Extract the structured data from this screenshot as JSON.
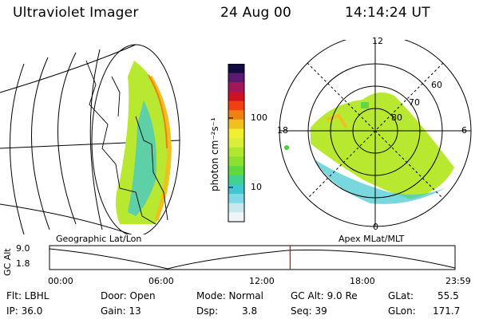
{
  "header": {
    "title": "Ultraviolet Imager",
    "date": "24 Aug 00",
    "time": "14:14:24 UT"
  },
  "colorbar": {
    "unit_label": "photon cm⁻²s⁻¹",
    "ticks": [
      "100",
      "10"
    ],
    "colors": [
      "#120a40",
      "#5a1a70",
      "#a0185a",
      "#d01020",
      "#f04010",
      "#f08010",
      "#f0c020",
      "#f0f030",
      "#d8f038",
      "#b0e830",
      "#8ce030",
      "#60d840",
      "#40d090",
      "#40c8d0",
      "#80d8e8",
      "#c8e8f0",
      "#eef4f8"
    ]
  },
  "geo_panel": {
    "label": "Geographic Lat/Lon"
  },
  "polar_panel": {
    "label": "Apex MLat/MLT",
    "mlt_labels": {
      "top": "12",
      "left": "18",
      "right": "6",
      "bottom": "0"
    },
    "lat_labels": [
      "60",
      "70",
      "80"
    ]
  },
  "timeline": {
    "axis_label": "GC Alt",
    "y_max": "9.0",
    "y_min": "1.8",
    "ticks": [
      "00:00",
      "06:00",
      "12:00",
      "18:00",
      "23:59"
    ],
    "marker_time": "14:14:24",
    "marker_color": "#e00000"
  },
  "status": {
    "flt": "Flt: LBHL",
    "ip": "IP: 36.0",
    "door": "Door: Open",
    "gain": "Gain: 13",
    "mode": "Mode: Normal",
    "dsp_label": "Dsp:",
    "dsp_value": "3.8",
    "gc_alt": "GC Alt: 9.0 Re",
    "seq": "Seq: 39",
    "glat_label": "GLat:",
    "glat_value": "55.5",
    "glon_label": "GLon:",
    "glon_value": "171.7"
  }
}
